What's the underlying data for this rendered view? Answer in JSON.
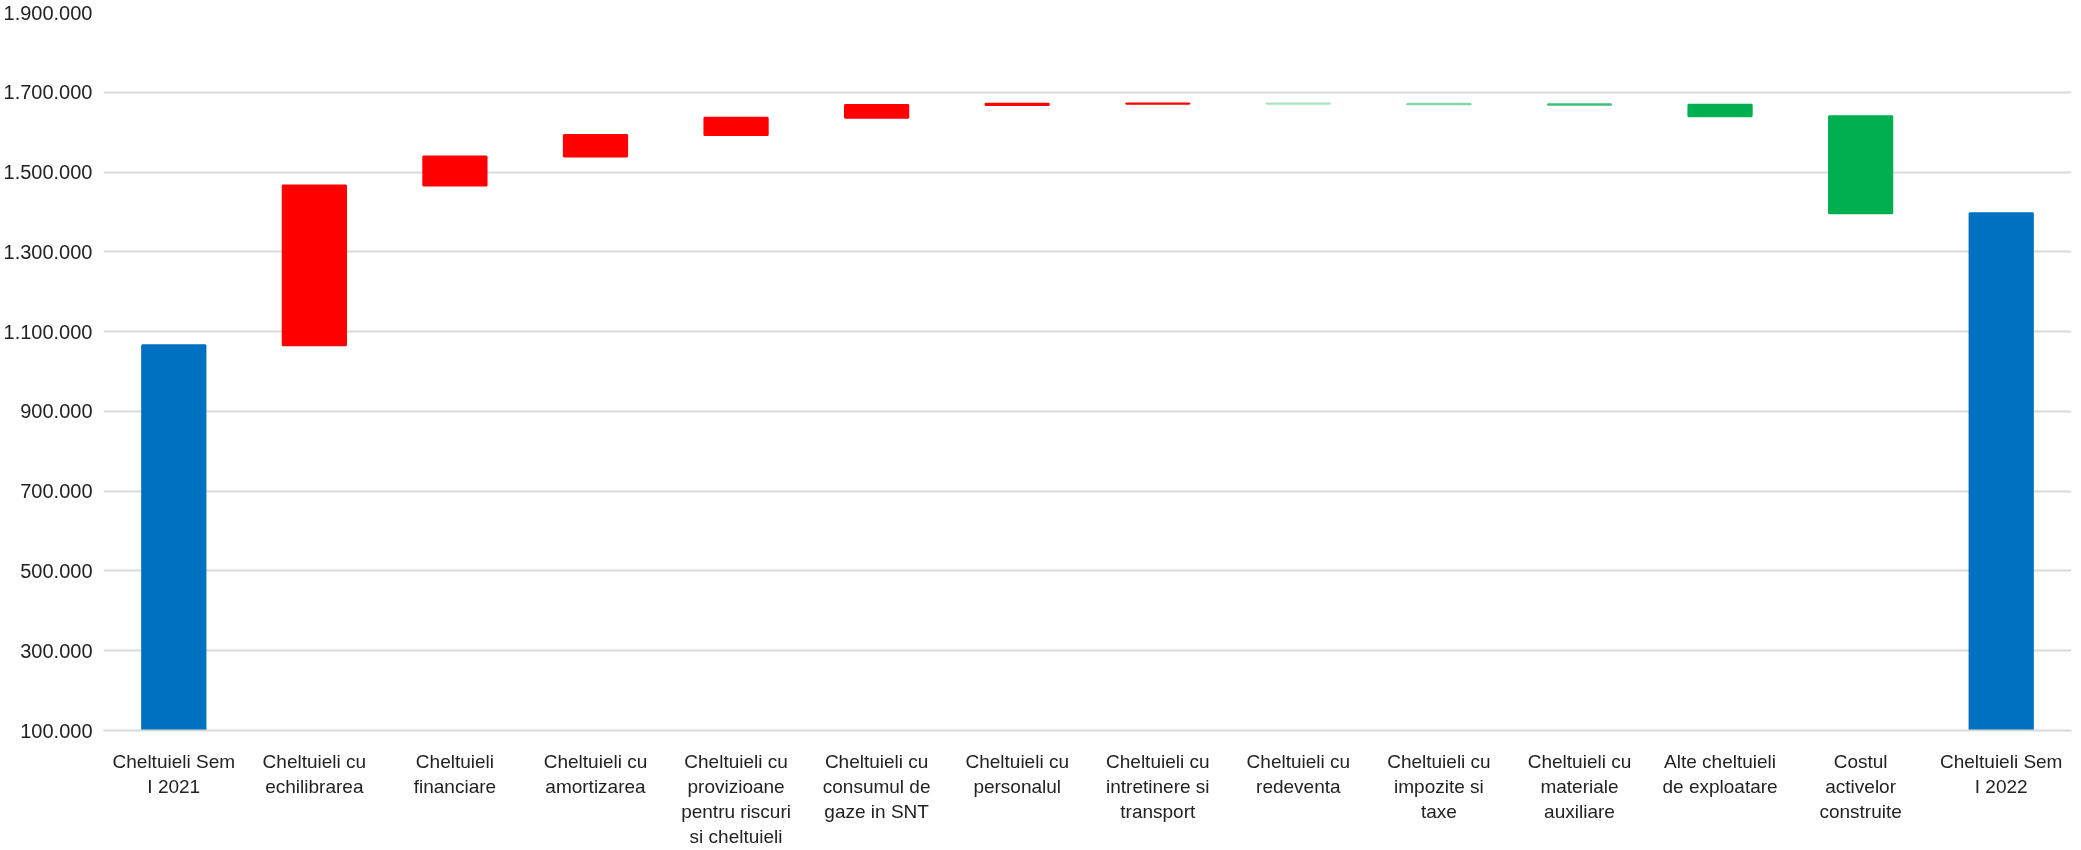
{
  "chart_data": {
    "type": "bar",
    "categories": [
      "Cheltuieli Sem I 2021",
      "Cheltuieli cu echilibrarea",
      "Cheltuieli financiare",
      "Cheltuieli cu amortizarea",
      "Cheltuieli cu provizioane pentru riscuri si cheltuieli",
      "Cheltuieli cu consumul de gaze in SNT",
      "Cheltuieli cu personalul",
      "Cheltuieli cu intretinere si transport",
      "Cheltuieli cu redeventa",
      "Cheltuieli cu impozite si taxe",
      "Cheltuieli cu materiale auxiliare",
      "Alte cheltuieli de exploatare",
      "Costul activelor construite",
      "Cheltuieli Sem I 2022"
    ],
    "values": [
      1066000,
      400000,
      73000,
      54000,
      43000,
      32000,
      3000,
      1000,
      -1000,
      -1000,
      -1000,
      -29000,
      -243000,
      1397000
    ],
    "base": [
      0,
      1066000,
      1466000,
      1539000,
      1593000,
      1636000,
      1668000,
      1671000,
      1672000,
      1671000,
      1670000,
      1669000,
      1640000,
      0
    ],
    "colors": [
      "#0070c0",
      "#ff0000",
      "#ff0000",
      "#ff0000",
      "#ff0000",
      "#ff0000",
      "#ff0000",
      "#ff0000",
      "#a8e6c2",
      "#7fd6a4",
      "#3fbf78",
      "#00b050",
      "#00b050",
      "#0070c0"
    ],
    "ylim": [
      100000,
      1900000
    ],
    "yticks": [
      {
        "value": 100000,
        "label": "100.000"
      },
      {
        "value": 300000,
        "label": "300.000"
      },
      {
        "value": 500000,
        "label": "500.000"
      },
      {
        "value": 700000,
        "label": "700.000"
      },
      {
        "value": 900000,
        "label": "900.000"
      },
      {
        "value": 1100000,
        "label": "1.100.000"
      },
      {
        "value": 1300000,
        "label": "1.300.000"
      },
      {
        "value": 1500000,
        "label": "1.500.000"
      },
      {
        "value": 1700000,
        "label": "1.700.000"
      },
      {
        "value": 1900000,
        "label": "1.900.000"
      }
    ],
    "grid": "y"
  }
}
